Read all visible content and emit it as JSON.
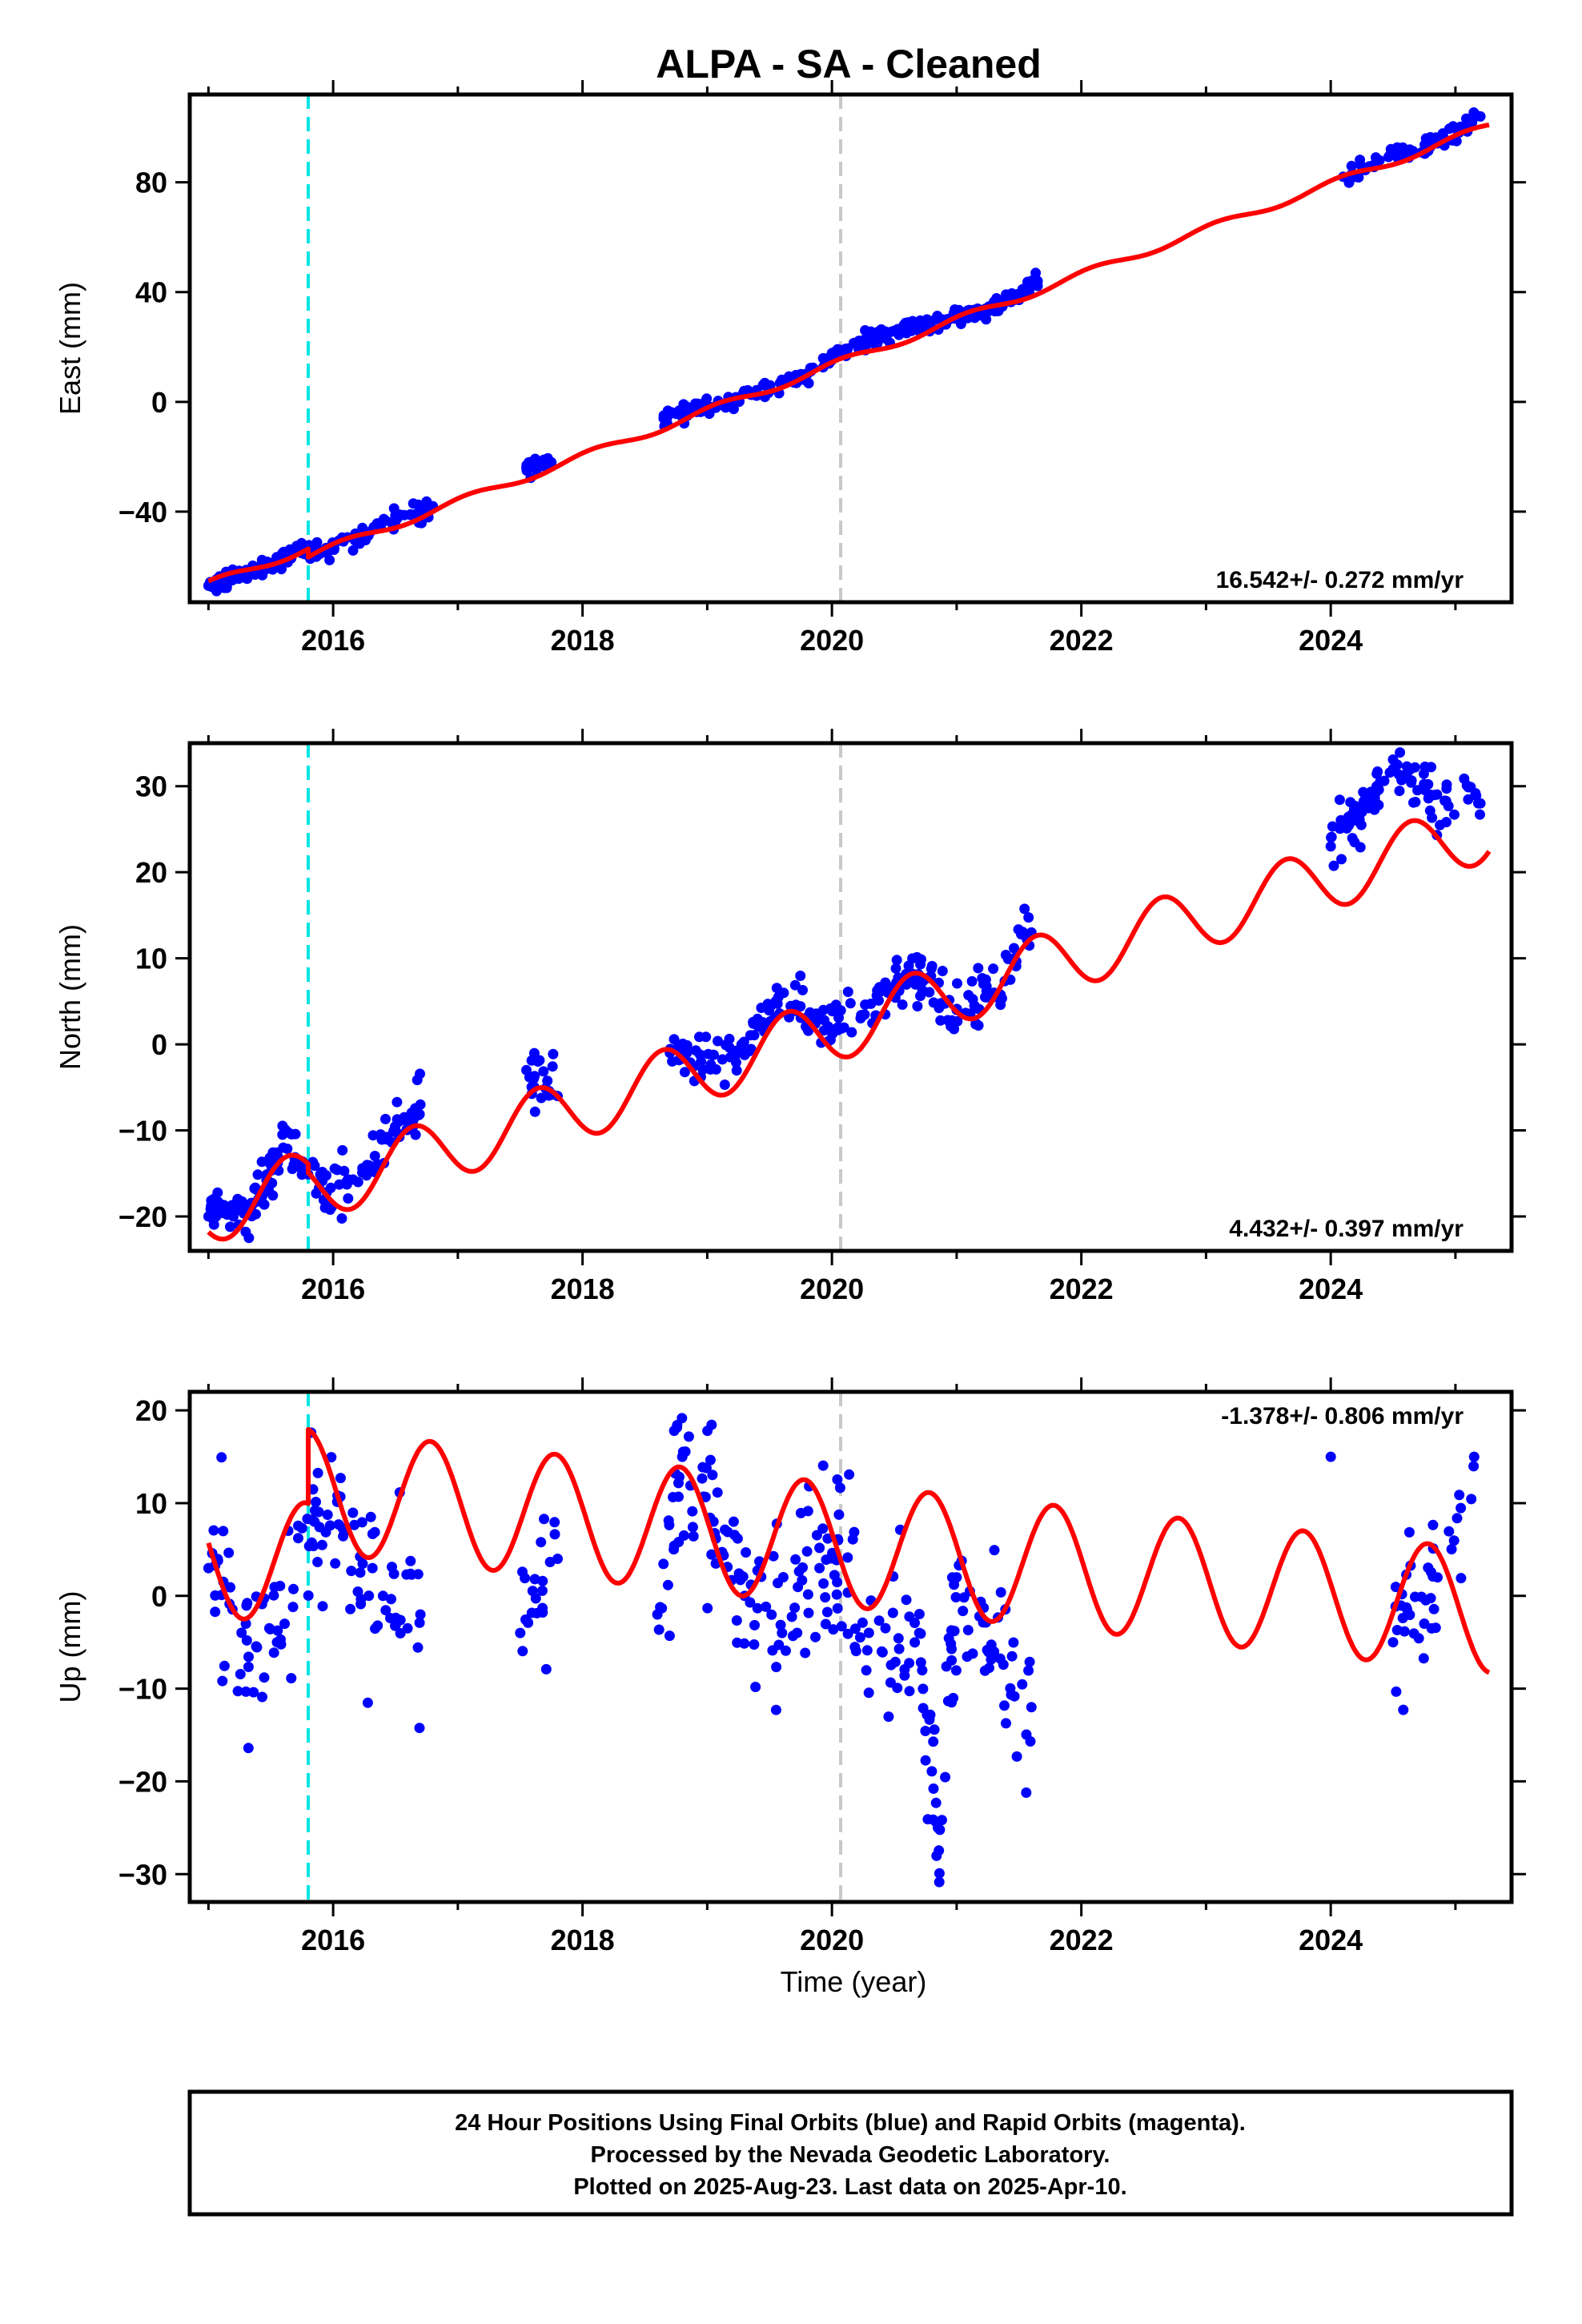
{
  "title": "ALPA  - SA - Cleaned",
  "xlabel": "Time (year)",
  "footer": [
    "24 Hour Positions Using Final Orbits (blue) and Rapid Orbits (magenta).",
    "Processed by the Nevada Geodetic Laboratory.",
    "Plotted on 2025-Aug-23. Last data on 2025-Apr-10."
  ],
  "colors": {
    "data": "#0000ff",
    "model": "#ff0000",
    "equipment_change": "#00e5e5",
    "reference_line": "#c8c8c8"
  },
  "chart_data": [
    {
      "type": "scatter",
      "ylabel": "East (mm)",
      "rate_label": "16.542+/- 0.272 mm/yr",
      "xlim": [
        2014.85,
        2025.45
      ],
      "ylim": [
        -73,
        112
      ],
      "xticks": [
        2016,
        2018,
        2020,
        2022,
        2024
      ],
      "yticks": [
        -40,
        0,
        40,
        80
      ],
      "vlines": [
        2015.8,
        2020.07
      ],
      "model_breaks": [
        [
          2015.8,
          -3
        ]
      ],
      "series": [
        {
          "role": "data",
          "x": [
            2015.0,
            2015.2,
            2015.4,
            2015.6,
            2015.75,
            2015.9,
            2016.2,
            2016.5,
            2016.8,
            2017.55,
            2017.75,
            2018.65,
            2018.9,
            2019.2,
            2019.5,
            2019.8,
            2020.05,
            2020.35,
            2020.6,
            2020.9,
            2021.2,
            2021.45,
            2021.65,
            2024.1,
            2024.5,
            2024.8,
            2025.2
          ],
          "y": [
            -67,
            -64,
            -61,
            -57,
            -53,
            -55,
            -50,
            -43,
            -38,
            -24,
            -22,
            -6,
            -3,
            0,
            5,
            10,
            18,
            23,
            27,
            29,
            33,
            38,
            44,
            82,
            90,
            93,
            104
          ]
        }
      ],
      "model": {
        "trend": {
          "value_at_2015": -66.5,
          "rate": 16.542
        },
        "seasonal": {
          "annual_cos": 1.2,
          "annual_sin": 0.7
        },
        "offsets": [
          {
            "x": 2015.8,
            "size": -3
          }
        ]
      }
    },
    {
      "type": "scatter",
      "ylabel": "North (mm)",
      "rate_label": "4.432+/- 0.397 mm/yr",
      "xlim": [
        2014.85,
        2025.45
      ],
      "ylim": [
        -24,
        35
      ],
      "xticks": [
        2016,
        2018,
        2020,
        2022,
        2024
      ],
      "yticks": [
        -20,
        -10,
        0,
        10,
        20,
        30
      ],
      "vlines": [
        2015.8,
        2020.07
      ],
      "series": [
        {
          "role": "data",
          "x": [
            2015.0,
            2015.2,
            2015.4,
            2015.6,
            2015.9,
            2016.2,
            2016.5,
            2016.7,
            2017.55,
            2017.8,
            2018.7,
            2018.95,
            2019.25,
            2019.55,
            2019.85,
            2020.05,
            2020.45,
            2020.7,
            2021.0,
            2021.3,
            2021.6,
            2024.0,
            2024.25,
            2024.5,
            2024.8,
            2025.2
          ],
          "y": [
            -20,
            -20,
            -18,
            -12,
            -16,
            -16,
            -10,
            -7,
            -3,
            -6,
            -1,
            -2,
            -1,
            5,
            3,
            2,
            6,
            8,
            4,
            6,
            13,
            23,
            27,
            32,
            29,
            28
          ]
        }
      ],
      "model": {
        "trend": {
          "value_at_2015": -19.5,
          "rate": 4.432
        },
        "seasonal": {
          "annual_cos": -2.3,
          "annual_sin": -2.9
        },
        "offsets": [
          {
            "x": 2015.8,
            "size": -1
          }
        ]
      }
    },
    {
      "type": "scatter",
      "ylabel": "Up (mm)",
      "rate_label": "-1.378+/- 0.806 mm/yr",
      "xlim": [
        2014.85,
        2025.45
      ],
      "ylim": [
        -33,
        22
      ],
      "xticks": [
        2016,
        2018,
        2020,
        2022,
        2024
      ],
      "yticks": [
        -30,
        -20,
        -10,
        0,
        10,
        20
      ],
      "vlines": [
        2015.8,
        2020.07
      ],
      "series": [
        {
          "role": "data",
          "x": [
            2015.0,
            2015.3,
            2015.55,
            2015.85,
            2016.1,
            2016.4,
            2016.7,
            2017.5,
            2017.8,
            2018.6,
            2018.8,
            2019.05,
            2019.3,
            2019.6,
            2019.9,
            2020.05,
            2020.4,
            2020.7,
            2020.85,
            2021.0,
            2021.3,
            2021.6,
            2024.0,
            2024.5,
            2024.75,
            2025.15
          ],
          "y": [
            3,
            -3,
            -5,
            8,
            7,
            0,
            -2,
            -4,
            4,
            -2,
            15,
            8,
            0,
            -4,
            3,
            6,
            -6,
            -4,
            -25,
            2,
            -6,
            -12,
            15,
            -5,
            -3,
            15
          ]
        }
      ],
      "model": {
        "trend": {
          "value_at_2015": 4.5,
          "rate": -1.378
        },
        "seasonal": {
          "annual_cos": 1.2,
          "annual_sin": -6.5
        },
        "offsets": [
          {
            "x": 2015.8,
            "size": 8
          }
        ]
      }
    }
  ]
}
